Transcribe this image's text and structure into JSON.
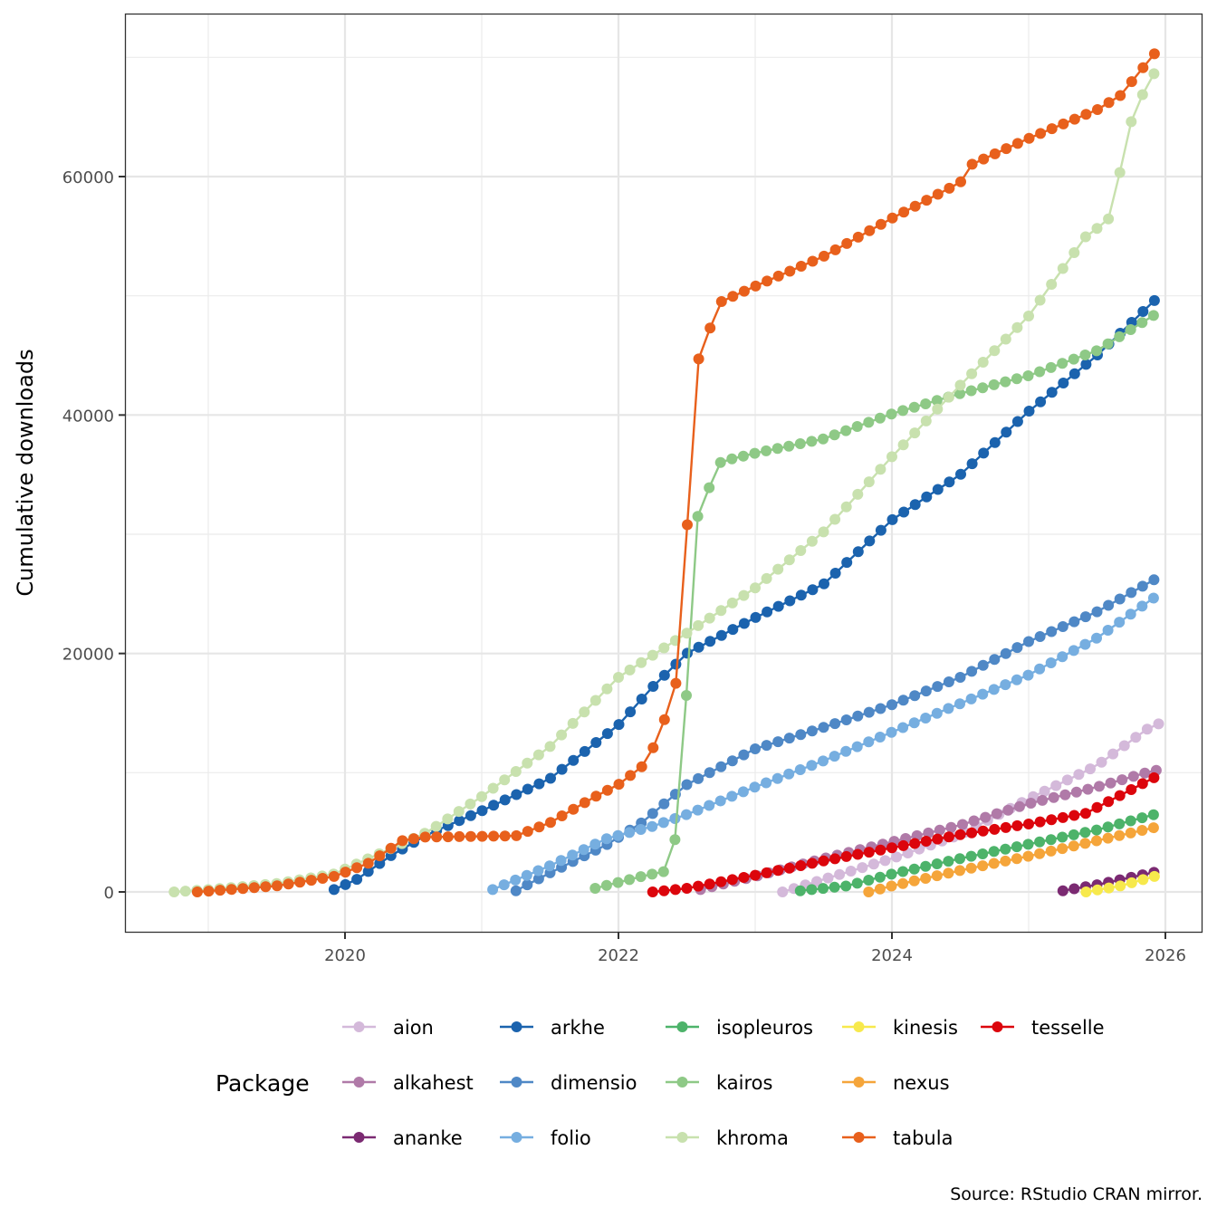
{
  "chart_data": {
    "type": "line",
    "title": "",
    "xlabel": "",
    "ylabel": "Cumulative downloads",
    "caption": "Source: RStudio CRAN mirror.",
    "legend_title": "Package",
    "legend_position": "bottom",
    "grid": true,
    "xlim": [
      2018.6,
      2026.2
    ],
    "ylim": [
      -3300,
      73500
    ],
    "x_ticks": [
      2020,
      2022,
      2024,
      2026
    ],
    "x_tick_labels": [
      "2020",
      "2022",
      "2024",
      "2026"
    ],
    "y_ticks": [
      0,
      20000,
      40000,
      60000
    ],
    "y_tick_labels": [
      "0",
      "20000",
      "40000",
      "60000"
    ],
    "x_step": "monthly",
    "series": [
      {
        "name": "aion",
        "color": "#d4b9da",
        "points": [
          [
            2023.2,
            0
          ],
          [
            2024.0,
            2800
          ],
          [
            2024.5,
            4800
          ],
          [
            2025.0,
            7800
          ],
          [
            2025.5,
            10600
          ],
          [
            2025.92,
            14100
          ]
        ]
      },
      {
        "name": "alkahest",
        "color": "#b07aa8",
        "points": [
          [
            2022.6,
            200
          ],
          [
            2023.0,
            1300
          ],
          [
            2023.5,
            2800
          ],
          [
            2024.0,
            4200
          ],
          [
            2024.5,
            5600
          ],
          [
            2025.0,
            7400
          ],
          [
            2025.5,
            8800
          ],
          [
            2025.92,
            10200
          ]
        ]
      },
      {
        "name": "ananke",
        "color": "#7b2a72",
        "points": [
          [
            2025.25,
            100
          ],
          [
            2025.5,
            600
          ],
          [
            2025.92,
            1650
          ]
        ]
      },
      {
        "name": "arkhe",
        "color": "#1b63ae",
        "points": [
          [
            2019.92,
            200
          ],
          [
            2020.08,
            1000
          ],
          [
            2020.33,
            3000
          ],
          [
            2020.6,
            4800
          ],
          [
            2021.0,
            6800
          ],
          [
            2021.5,
            9500
          ],
          [
            2022.0,
            14000
          ],
          [
            2022.25,
            17200
          ],
          [
            2022.5,
            20000
          ],
          [
            2022.75,
            21500
          ],
          [
            2023.0,
            23000
          ],
          [
            2023.5,
            25800
          ],
          [
            2024.0,
            31200
          ],
          [
            2024.5,
            35000
          ],
          [
            2025.0,
            40300
          ],
          [
            2025.5,
            45000
          ],
          [
            2025.92,
            49600
          ]
        ]
      },
      {
        "name": "dimensio",
        "color": "#4f88c6",
        "points": [
          [
            2021.25,
            100
          ],
          [
            2021.5,
            1600
          ],
          [
            2021.92,
            4000
          ],
          [
            2022.17,
            5800
          ],
          [
            2022.5,
            9000
          ],
          [
            2022.75,
            10500
          ],
          [
            2023.0,
            12000
          ],
          [
            2023.5,
            13800
          ],
          [
            2024.0,
            15700
          ],
          [
            2024.5,
            18000
          ],
          [
            2025.0,
            21000
          ],
          [
            2025.5,
            23500
          ],
          [
            2025.92,
            26200
          ]
        ]
      },
      {
        "name": "folio",
        "color": "#76aee0",
        "points": [
          [
            2021.08,
            200
          ],
          [
            2021.5,
            2200
          ],
          [
            2021.92,
            4500
          ],
          [
            2022.25,
            5500
          ],
          [
            2022.5,
            6500
          ],
          [
            2023.0,
            8800
          ],
          [
            2023.5,
            11000
          ],
          [
            2024.0,
            13400
          ],
          [
            2024.5,
            15800
          ],
          [
            2025.0,
            18200
          ],
          [
            2025.5,
            21300
          ],
          [
            2025.92,
            24700
          ]
        ]
      },
      {
        "name": "isopleuros",
        "color": "#4db36a",
        "points": [
          [
            2023.33,
            100
          ],
          [
            2023.67,
            500
          ],
          [
            2024.0,
            1500
          ],
          [
            2024.5,
            2800
          ],
          [
            2025.0,
            4000
          ],
          [
            2025.5,
            5200
          ],
          [
            2025.92,
            6500
          ]
        ]
      },
      {
        "name": "kairos",
        "color": "#8ec986",
        "points": [
          [
            2021.83,
            300
          ],
          [
            2022.17,
            1300
          ],
          [
            2022.33,
            1700
          ],
          [
            2022.42,
            4600
          ],
          [
            2022.5,
            17000
          ],
          [
            2022.58,
            31500
          ],
          [
            2022.67,
            34100
          ],
          [
            2022.75,
            36100
          ],
          [
            2023.0,
            36800
          ],
          [
            2023.5,
            38000
          ],
          [
            2024.0,
            40100
          ],
          [
            2024.5,
            41800
          ],
          [
            2025.0,
            43300
          ],
          [
            2025.5,
            45400
          ],
          [
            2025.92,
            48400
          ]
        ]
      },
      {
        "name": "kinesis",
        "color": "#f7e94c",
        "points": [
          [
            2025.42,
            0
          ],
          [
            2025.67,
            500
          ],
          [
            2025.92,
            1300
          ]
        ]
      },
      {
        "name": "khroma",
        "color": "#c8e1ae",
        "points": [
          [
            2018.75,
            0
          ],
          [
            2019.0,
            200
          ],
          [
            2019.5,
            700
          ],
          [
            2019.92,
            1500
          ],
          [
            2020.25,
            3200
          ],
          [
            2020.6,
            5000
          ],
          [
            2021.0,
            8000
          ],
          [
            2021.5,
            12200
          ],
          [
            2022.0,
            18000
          ],
          [
            2022.5,
            21700
          ],
          [
            2023.0,
            25500
          ],
          [
            2023.5,
            30200
          ],
          [
            2024.0,
            36500
          ],
          [
            2024.5,
            42500
          ],
          [
            2025.0,
            48300
          ],
          [
            2025.42,
            55000
          ],
          [
            2025.58,
            56300
          ],
          [
            2025.67,
            60500
          ],
          [
            2025.75,
            64600
          ],
          [
            2025.83,
            66800
          ],
          [
            2025.92,
            68700
          ]
        ]
      },
      {
        "name": "nexus",
        "color": "#f5a53a",
        "points": [
          [
            2023.83,
            0
          ],
          [
            2024.0,
            500
          ],
          [
            2024.5,
            1800
          ],
          [
            2025.0,
            3000
          ],
          [
            2025.5,
            4300
          ],
          [
            2025.92,
            5400
          ]
        ]
      },
      {
        "name": "tabula",
        "color": "#e8601c",
        "points": [
          [
            2018.92,
            0
          ],
          [
            2019.5,
            500
          ],
          [
            2019.92,
            1300
          ],
          [
            2020.17,
            2400
          ],
          [
            2020.42,
            4300
          ],
          [
            2020.58,
            4600
          ],
          [
            2021.25,
            4700
          ],
          [
            2021.5,
            5800
          ],
          [
            2021.83,
            8000
          ],
          [
            2022.0,
            9000
          ],
          [
            2022.17,
            10500
          ],
          [
            2022.25,
            12000
          ],
          [
            2022.33,
            14200
          ],
          [
            2022.42,
            17500
          ],
          [
            2022.5,
            30200
          ],
          [
            2022.58,
            44500
          ],
          [
            2022.67,
            47300
          ],
          [
            2022.75,
            49500
          ],
          [
            2023.0,
            50800
          ],
          [
            2023.5,
            53300
          ],
          [
            2024.0,
            56500
          ],
          [
            2024.5,
            59500
          ],
          [
            2024.58,
            61000
          ],
          [
            2025.0,
            63200
          ],
          [
            2025.5,
            65600
          ],
          [
            2025.67,
            66800
          ],
          [
            2025.92,
            70300
          ]
        ]
      },
      {
        "name": "tesselle",
        "color": "#dc050c",
        "points": [
          [
            2022.25,
            0
          ],
          [
            2022.5,
            300
          ],
          [
            2023.0,
            1400
          ],
          [
            2023.5,
            2600
          ],
          [
            2024.0,
            3700
          ],
          [
            2024.5,
            4800
          ],
          [
            2025.0,
            5700
          ],
          [
            2025.42,
            6600
          ],
          [
            2025.92,
            9600
          ]
        ]
      }
    ],
    "legend_rows": [
      [
        "aion",
        "arkhe",
        "isopleuros",
        "kinesis",
        "tesselle"
      ],
      [
        "alkahest",
        "dimensio",
        "kairos",
        "nexus"
      ],
      [
        "ananke",
        "folio",
        "khroma",
        "tabula"
      ]
    ]
  }
}
